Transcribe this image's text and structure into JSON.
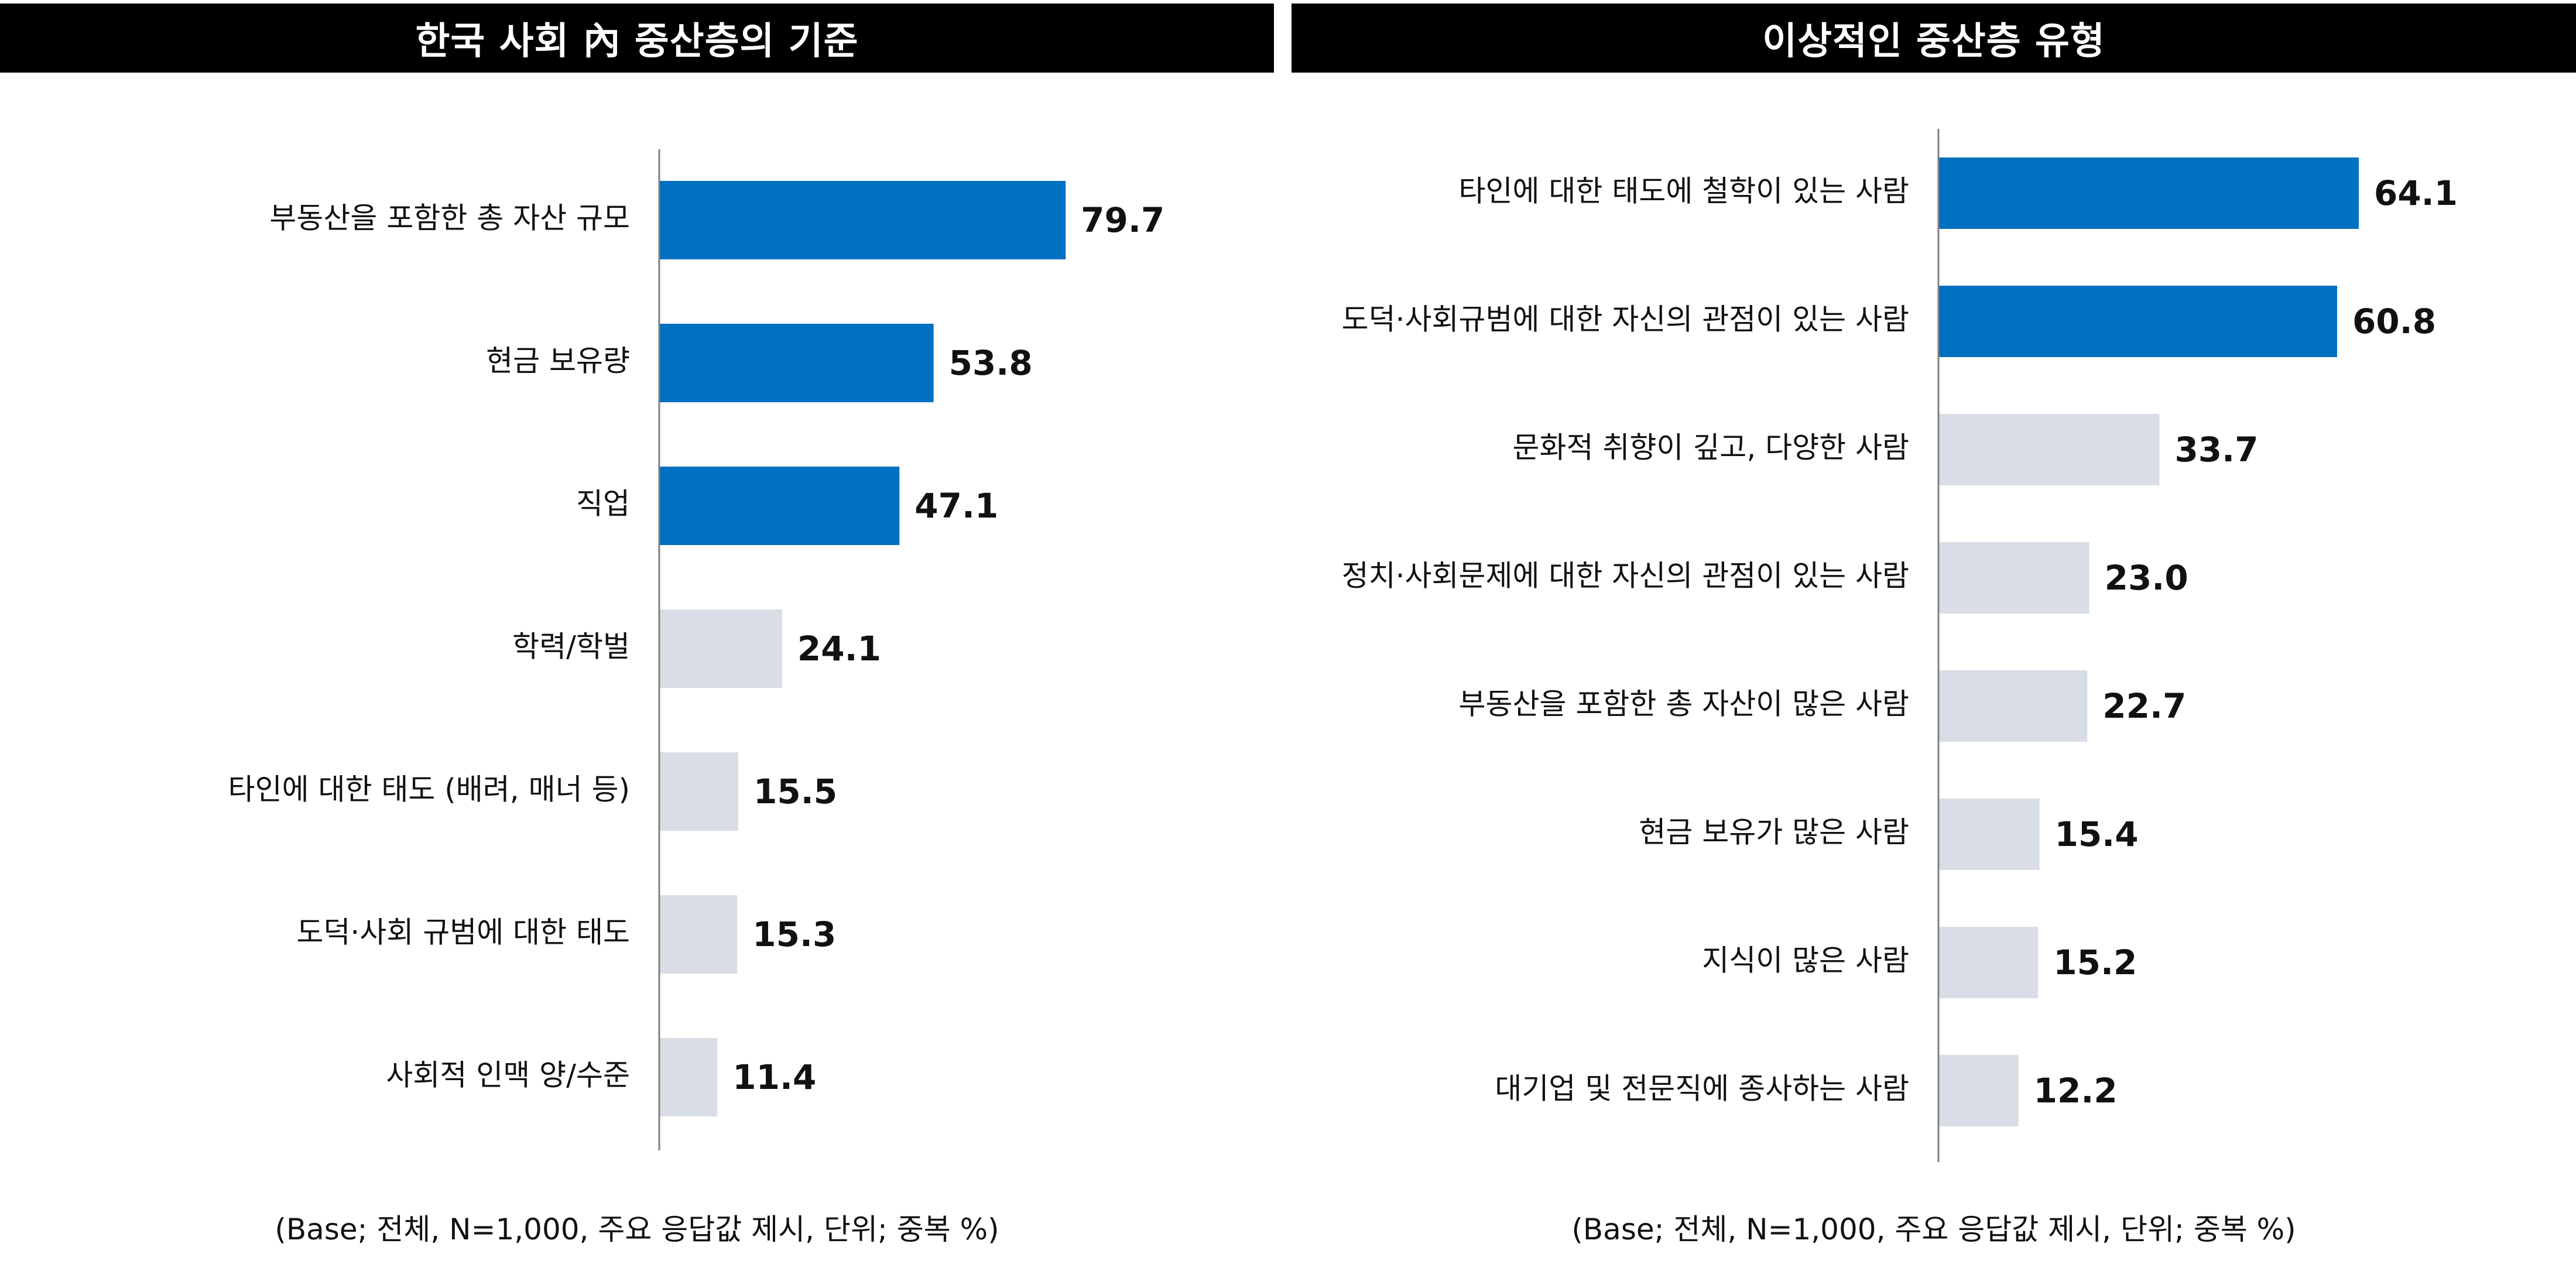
{
  "chart_data": [
    {
      "type": "bar",
      "orientation": "horizontal",
      "title": "한국 사회 內 중산층의 기준",
      "categories": [
        "부동산을 포함한 총 자산 규모",
        "현금 보유량",
        "직업",
        "학력/학벌",
        "타인에 대한 태도 (배려, 매너 등)",
        "도덕·사회 규범에 대한 태도",
        "사회적 인맥 양/수준"
      ],
      "values": [
        79.7,
        53.8,
        47.1,
        24.1,
        15.5,
        15.3,
        11.4
      ],
      "value_labels": [
        "79.7",
        "53.8",
        "47.1",
        "24.1",
        "15.5",
        "15.3",
        "11.4"
      ],
      "highlight_top_n": 3,
      "xlim": [
        0,
        100
      ],
      "grid": false,
      "footnote": "(Base; 전체, N=1,000, 주요 응답값 제시, 단위; 중복 %)"
    },
    {
      "type": "bar",
      "orientation": "horizontal",
      "title": "이상적인 중산층 유형",
      "categories": [
        "타인에 대한 태도에 철학이 있는 사람",
        "도덕·사회규범에 대한 자신의 관점이 있는 사람",
        "문화적 취향이 깊고, 다양한 사람",
        "정치·사회문제에 대한 자신의 관점이 있는 사람",
        "부동산을 포함한 총 자산이 많은 사람",
        "현금 보유가 많은 사람",
        "지식이 많은 사람",
        "대기업 및 전문직에 종사하는 사람"
      ],
      "values": [
        64.1,
        60.8,
        33.7,
        23.0,
        22.7,
        15.4,
        15.2,
        12.2
      ],
      "value_labels": [
        "64.1",
        "60.8",
        "33.7",
        "23.0",
        "22.7",
        "15.4",
        "15.2",
        "12.2"
      ],
      "highlight_top_n": 2,
      "xlim": [
        0,
        100
      ],
      "grid": false,
      "footnote": "(Base; 전체, N=1,000, 주요 응답값 제시, 단위; 중복 %)"
    }
  ],
  "colors": {
    "highlight": "#0070C0",
    "normal": "#D9DDE5",
    "axis": "#808080",
    "header_bg": "#000000",
    "header_text": "#FFFFFF"
  }
}
